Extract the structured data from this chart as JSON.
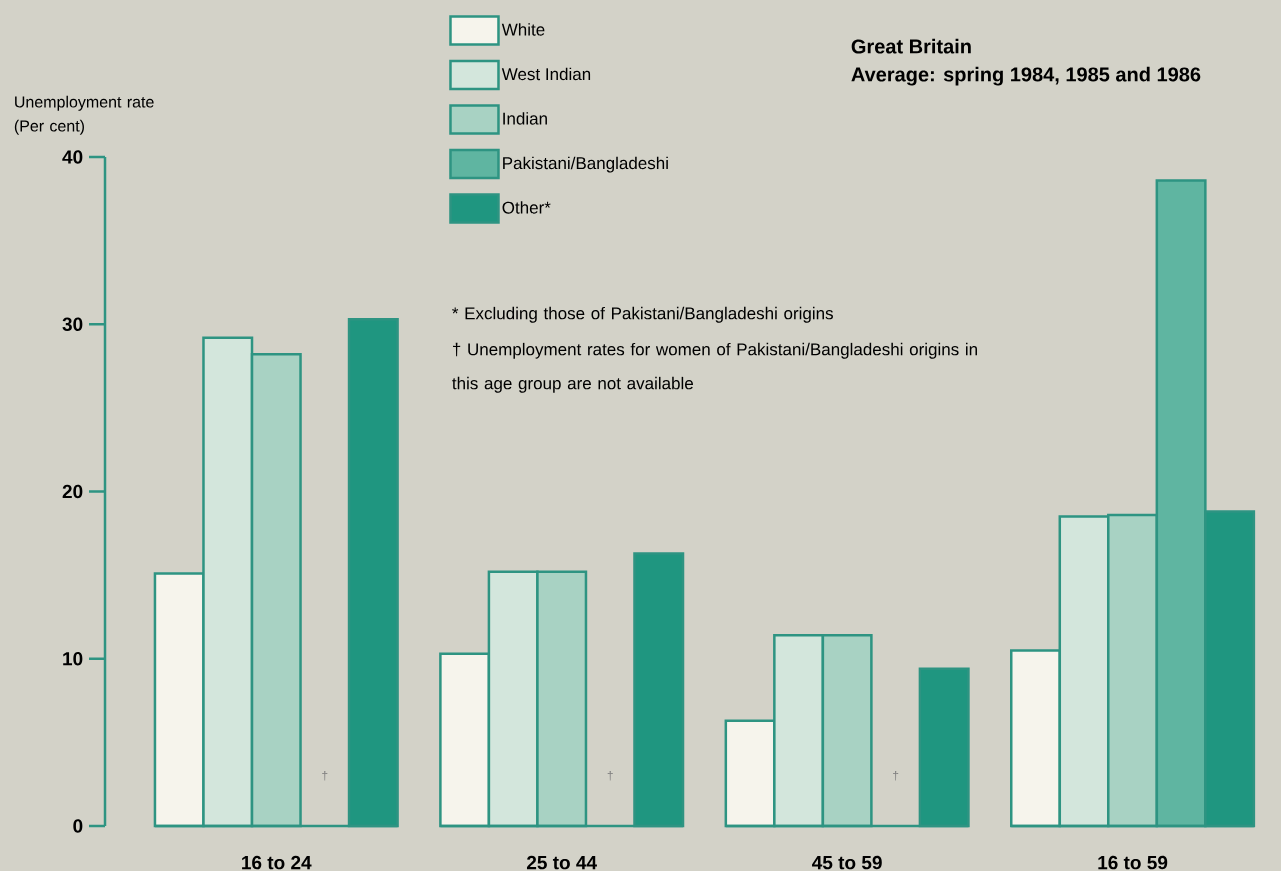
{
  "chart_data": {
    "type": "bar",
    "title": "Great Britain",
    "subtitle": "Average: spring 1984, 1985 and 1986",
    "ylabel": "Unemployment rate (Per cent)",
    "categories": [
      "16 to 24",
      "25 to 44",
      "45 to 59",
      "16 to 59"
    ],
    "series": [
      {
        "name": "White",
        "color": "#f6f4ec",
        "values": [
          15.1,
          10.3,
          6.3,
          10.5
        ]
      },
      {
        "name": "West Indian",
        "color": "#d3e6dc",
        "values": [
          29.2,
          15.2,
          11.4,
          18.5
        ]
      },
      {
        "name": "Indian",
        "color": "#a8d2c3",
        "values": [
          28.2,
          15.2,
          11.4,
          18.6
        ]
      },
      {
        "name": "Pakistani/Bangladeshi",
        "color": "#5fb5a1",
        "values": [
          null,
          null,
          null,
          38.6
        ]
      },
      {
        "name": "Other*",
        "color": "#1f9680",
        "values": [
          30.3,
          16.3,
          9.4,
          18.8
        ]
      }
    ],
    "ylim": [
      0,
      40
    ],
    "yticks": [
      0,
      10,
      20,
      30,
      40
    ],
    "grid": false,
    "legend": "top",
    "annotations": [
      "* Excluding those of Pakistani/Bangladeshi origins",
      "† Unemployment rates for women of Pakistani/Bangladeshi origins in this age group are not available",
      "†",
      "†",
      "†"
    ]
  }
}
